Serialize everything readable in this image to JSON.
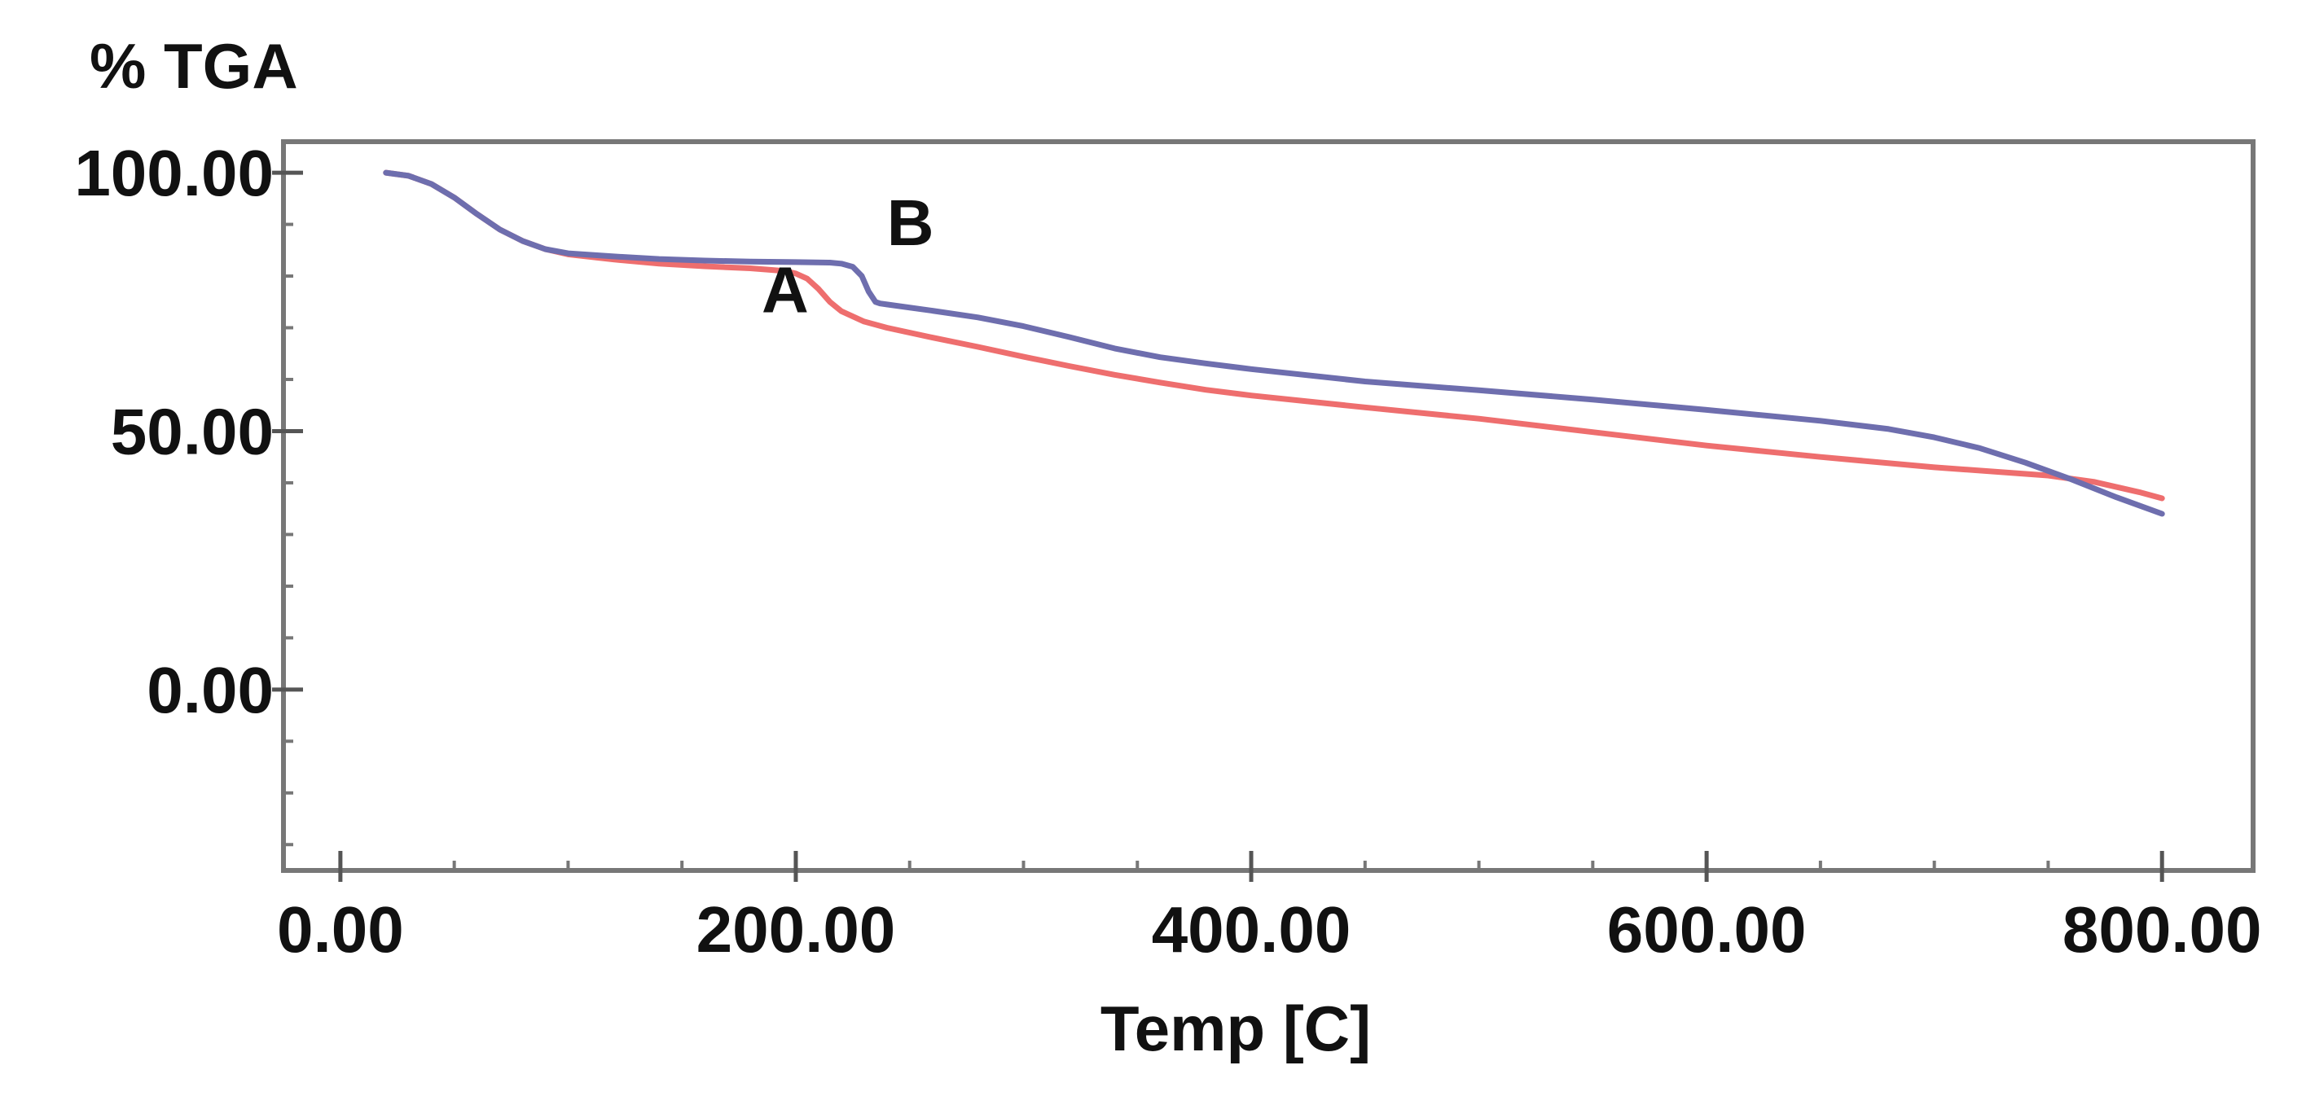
{
  "chart_data": {
    "type": "line",
    "title": "",
    "ylabel": "% TGA",
    "xlabel": "Temp [C]",
    "xlim": [
      -25,
      840
    ],
    "ylim": [
      -35,
      106
    ],
    "x_ticks": [
      {
        "value": 0,
        "label": "0.00"
      },
      {
        "value": 200,
        "label": "200.00"
      },
      {
        "value": 400,
        "label": "400.00"
      },
      {
        "value": 600,
        "label": "600.00"
      },
      {
        "value": 800,
        "label": "800.00"
      }
    ],
    "y_ticks": [
      {
        "value": 0,
        "label": "0.00"
      },
      {
        "value": 50,
        "label": "50.00"
      },
      {
        "value": 100,
        "label": "100.00"
      }
    ],
    "series": [
      {
        "name": "A",
        "color": "#ee6e6e",
        "x": [
          20,
          30,
          40,
          50,
          60,
          70,
          80,
          90,
          100,
          120,
          140,
          160,
          180,
          195,
          200,
          205,
          210,
          215,
          220,
          230,
          240,
          260,
          280,
          300,
          320,
          340,
          360,
          380,
          400,
          450,
          500,
          550,
          600,
          650,
          700,
          750,
          770,
          790,
          800
        ],
        "y": [
          100,
          99.4,
          97.8,
          95.2,
          92.0,
          89.0,
          86.8,
          85.2,
          84.2,
          83.2,
          82.4,
          81.9,
          81.5,
          81.0,
          80.5,
          79.5,
          77.5,
          75.0,
          73.2,
          71.2,
          70.0,
          68.1,
          66.3,
          64.4,
          62.6,
          60.9,
          59.4,
          58.0,
          56.9,
          54.6,
          52.4,
          49.8,
          47.2,
          45.0,
          43.0,
          41.4,
          40.2,
          38.2,
          37.0
        ]
      },
      {
        "name": "B",
        "color": "#6e6eae",
        "x": [
          20,
          30,
          40,
          50,
          60,
          70,
          80,
          90,
          100,
          120,
          140,
          160,
          180,
          200,
          215,
          220,
          225,
          229,
          232,
          235,
          237,
          240,
          260,
          280,
          300,
          320,
          340,
          360,
          380,
          400,
          450,
          500,
          550,
          600,
          650,
          680,
          700,
          720,
          740,
          760,
          780,
          800
        ],
        "y": [
          100,
          99.4,
          97.8,
          95.2,
          92.0,
          89.0,
          86.8,
          85.2,
          84.4,
          83.8,
          83.3,
          83.0,
          82.8,
          82.7,
          82.6,
          82.4,
          81.8,
          80.0,
          77.0,
          75.0,
          74.7,
          74.5,
          73.3,
          72.0,
          70.3,
          68.2,
          66.0,
          64.3,
          63.1,
          62.0,
          59.6,
          57.9,
          56.1,
          54.1,
          52.0,
          50.4,
          48.8,
          46.7,
          43.9,
          40.7,
          37.2,
          34.0
        ]
      }
    ],
    "annotations": [
      {
        "text": "A",
        "x": 185,
        "y": 73
      },
      {
        "text": "B",
        "x": 240,
        "y": 86
      }
    ]
  }
}
